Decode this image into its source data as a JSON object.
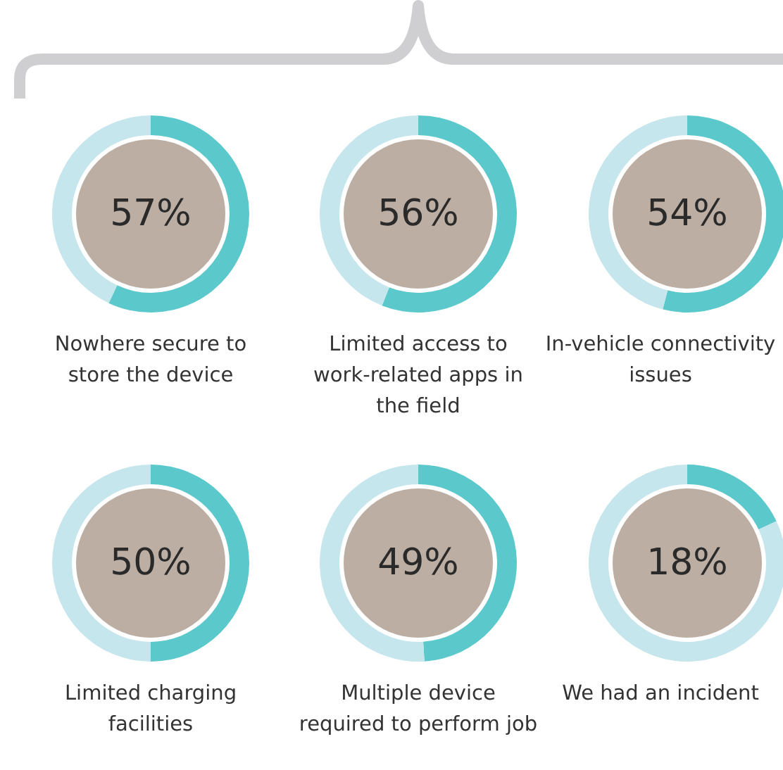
{
  "chart_data": [
    {
      "type": "donut",
      "title": "Nowhere secure to store the device",
      "categories": [
        null,
        null
      ],
      "values": [
        57,
        43
      ],
      "colors": [
        "#5bc8cc",
        "#c5e6ec"
      ],
      "annotations": [
        "57%"
      ]
    },
    {
      "type": "donut",
      "title": "Limited access to work-related apps in the field",
      "categories": [
        null,
        null
      ],
      "values": [
        56,
        44
      ],
      "colors": [
        "#5bc8cc",
        "#c5e6ec"
      ],
      "annotations": [
        "56%"
      ]
    },
    {
      "type": "donut",
      "title": "In-vehicle connectivity issues",
      "categories": [
        null,
        null
      ],
      "values": [
        54,
        46
      ],
      "colors": [
        "#5bc8cc",
        "#c5e6ec"
      ],
      "annotations": [
        "54%"
      ]
    },
    {
      "type": "donut",
      "title": "Limited charging facilities",
      "categories": [
        null,
        null
      ],
      "values": [
        50,
        50
      ],
      "colors": [
        "#5bc8cc",
        "#c5e6ec"
      ],
      "annotations": [
        "50%"
      ]
    },
    {
      "type": "donut",
      "title": "Multiple device required to perform job",
      "categories": [
        null,
        null
      ],
      "values": [
        49,
        51
      ],
      "colors": [
        "#5bc8cc",
        "#c5e6ec"
      ],
      "annotations": [
        "49%"
      ]
    },
    {
      "type": "donut",
      "title": "We had an incident",
      "categories": [
        null,
        null
      ],
      "values": [
        18,
        82
      ],
      "colors": [
        "#5bc8cc",
        "#c5e6ec"
      ],
      "annotations": [
        "18%"
      ]
    }
  ]
}
